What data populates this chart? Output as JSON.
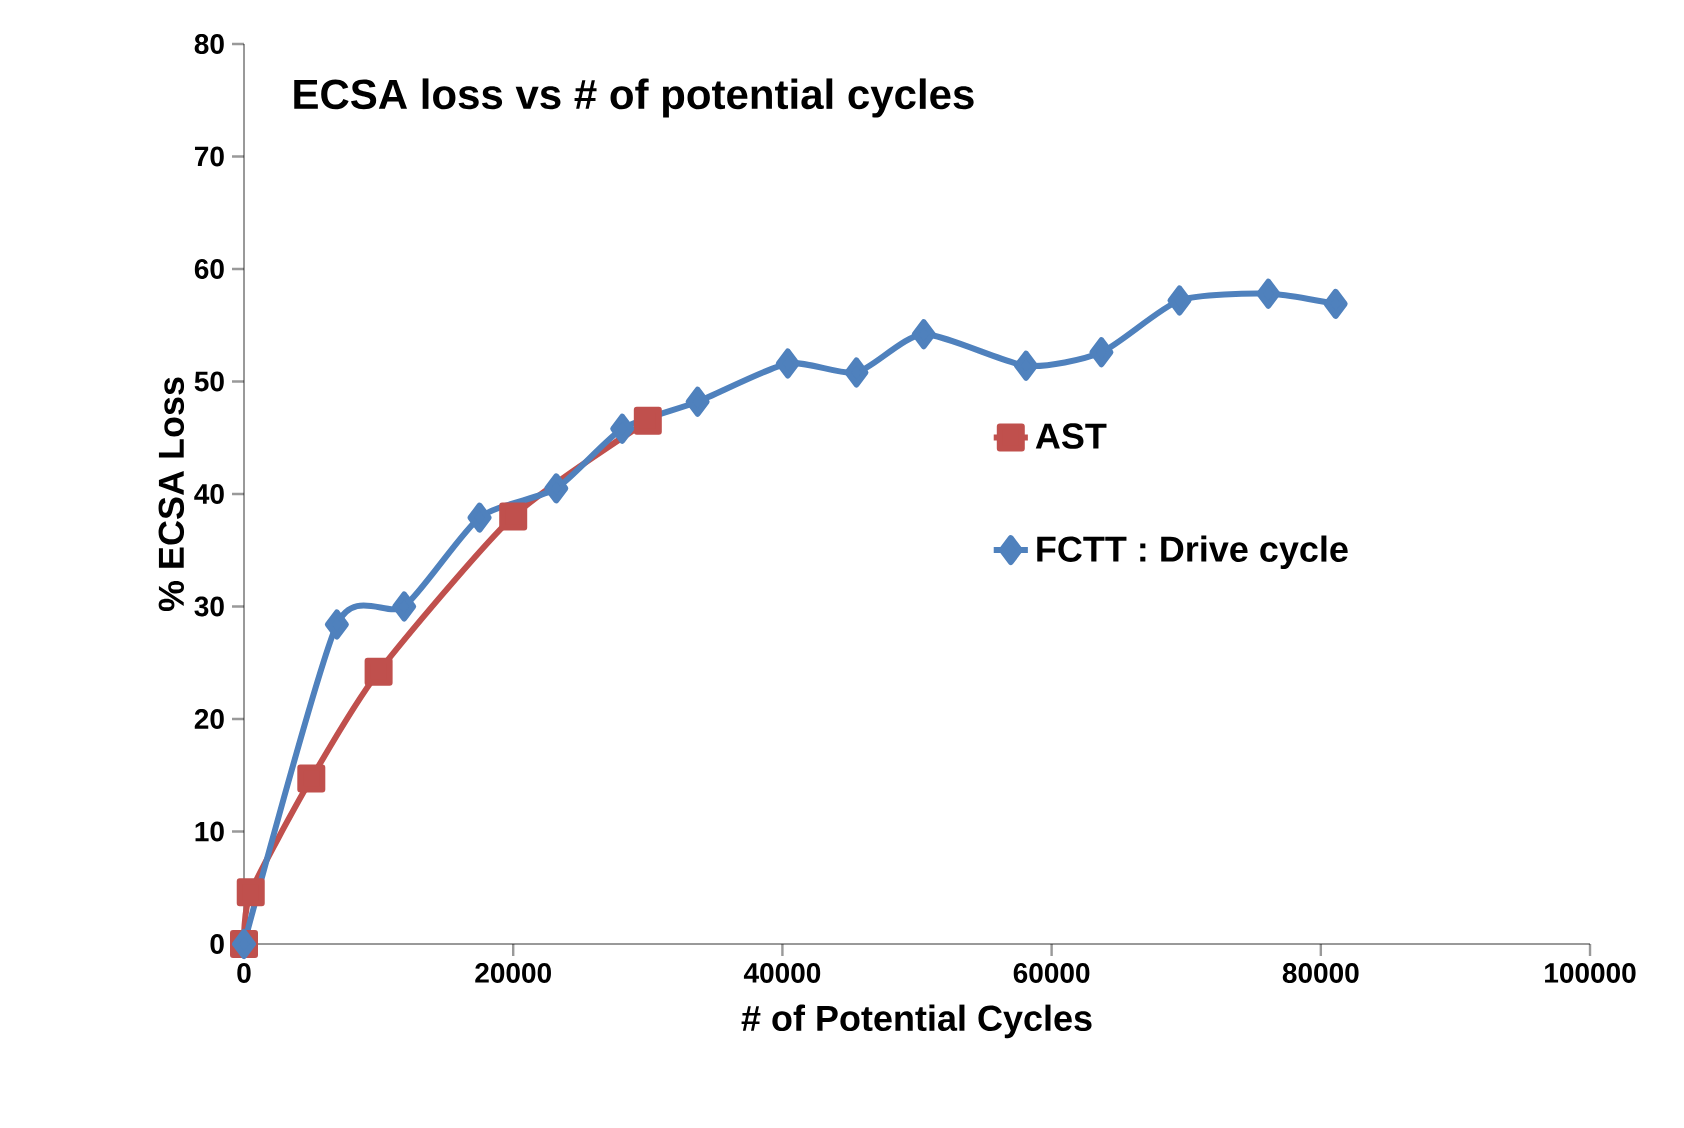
{
  "chart_data": {
    "type": "line",
    "title": "ECSA loss vs # of potential cycles",
    "xlabel": "# of Potential Cycles",
    "ylabel": "% ECSA Loss",
    "series": [
      {
        "name": "AST",
        "color": "#c0504d",
        "marker": "square",
        "x": [
          0,
          500,
          5000,
          10000,
          20000,
          30000
        ],
        "values": [
          0,
          4.6,
          14.7,
          24.2,
          38.0,
          46.5
        ]
      },
      {
        "name": "FCTT : Drive cycle",
        "color": "#4f81bd",
        "marker": "diamond",
        "x": [
          0,
          6900,
          11900,
          17500,
          23200,
          28100,
          33700,
          40400,
          45500,
          50500,
          58100,
          63700,
          69500,
          76100,
          81100
        ],
        "values": [
          0,
          28.4,
          30.0,
          37.9,
          40.5,
          45.8,
          48.2,
          51.6,
          50.8,
          54.2,
          51.4,
          52.6,
          57.2,
          57.8,
          56.9
        ]
      }
    ],
    "xlim": [
      0,
      100000
    ],
    "ylim": [
      0,
      80
    ],
    "xticks": [
      0,
      20000,
      40000,
      60000,
      80000,
      100000
    ],
    "yticks": [
      0,
      10,
      20,
      30,
      40,
      50,
      60,
      70,
      80
    ],
    "grid": false,
    "legend": "right"
  }
}
